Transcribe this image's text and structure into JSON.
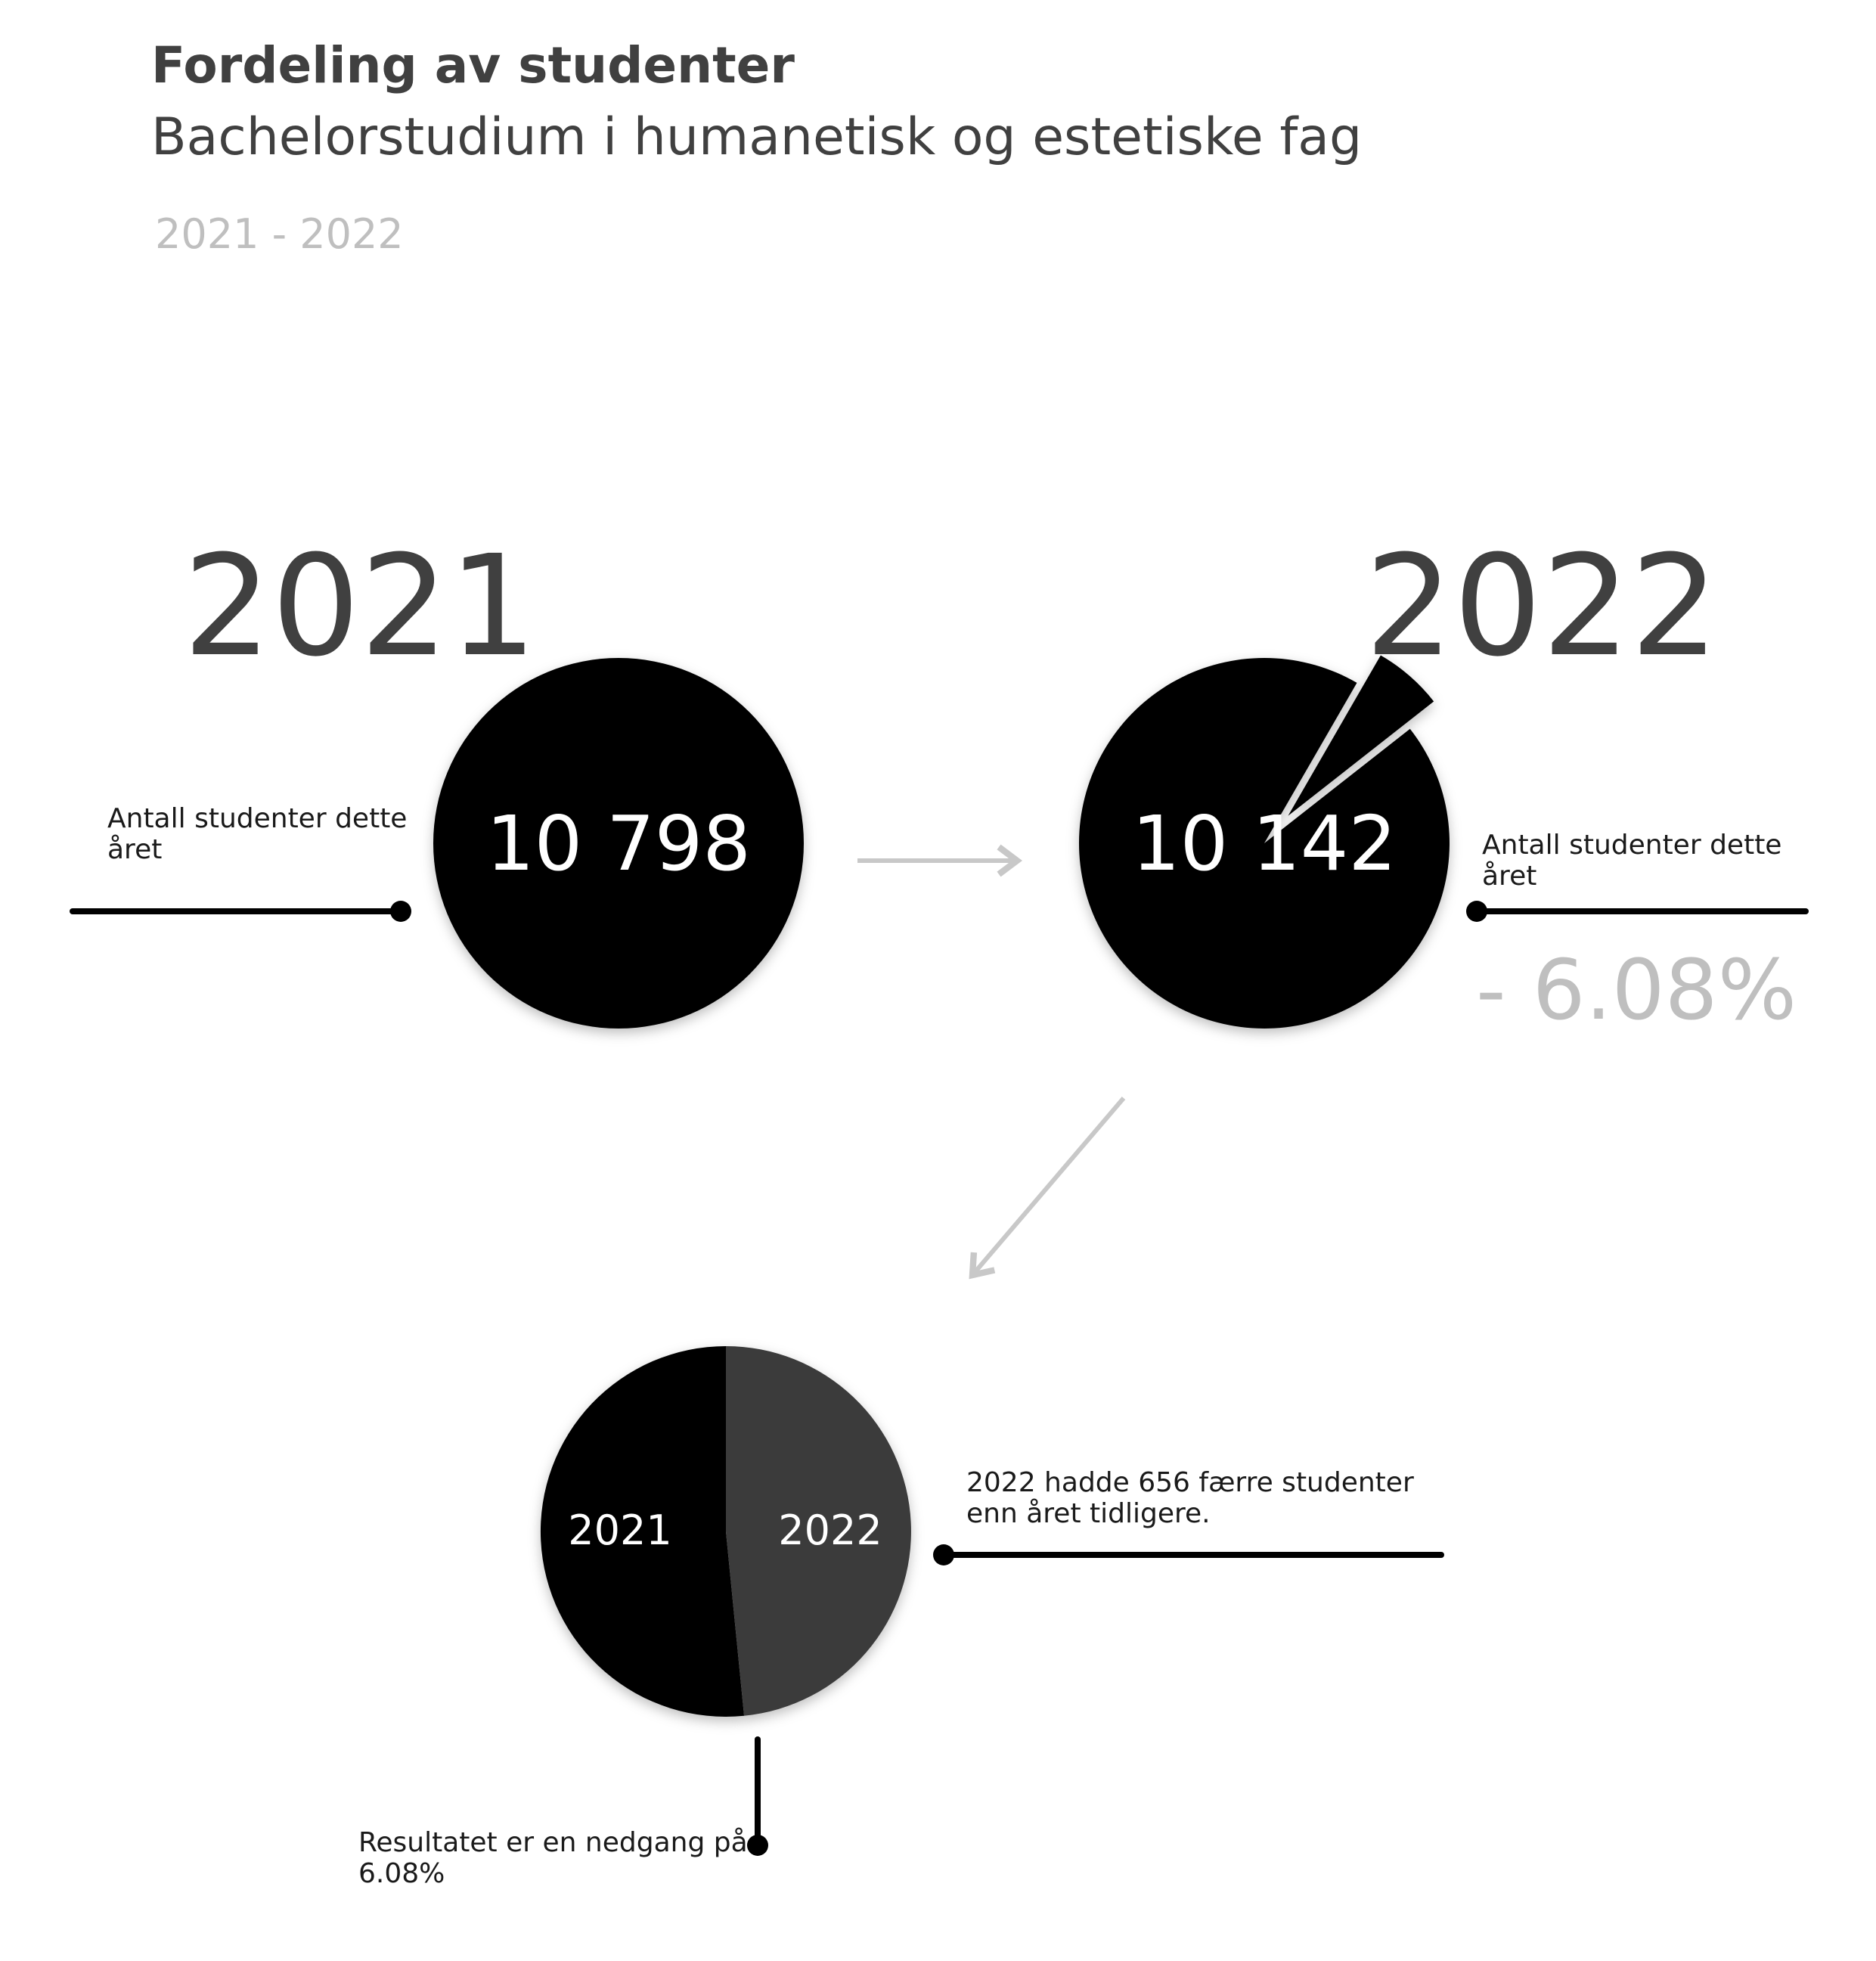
{
  "header": {
    "title": "Fordeling av studenter",
    "subtitle": "Bachelorstudium i humanetisk og estetiske fag",
    "period": "2021 - 2022"
  },
  "panels": {
    "year_2021": {
      "year": "2021",
      "value_label": "10 798",
      "caption": "Antall studenter dette året"
    },
    "year_2022": {
      "year": "2022",
      "value_label": "10 142",
      "caption": "Antall studenter dette året",
      "change": "- 6.08%"
    },
    "comparison": {
      "caption_diff": "2022 hadde 656 færre studenter enn året tidligere.",
      "caption_result": "Resultatet er en nedgang på 6.08%"
    }
  },
  "colors": {
    "circle": "#000000",
    "pie_2022": "#3a3a3a",
    "arrow": "#c8c8c8",
    "leader": "#000000"
  },
  "chart_data": [
    {
      "type": "pie",
      "title": "2021",
      "categories": [
        "Antall studenter"
      ],
      "values": [
        10798
      ]
    },
    {
      "type": "pie",
      "title": "2022",
      "categories": [
        "Antall studenter",
        "Nedgang"
      ],
      "values": [
        10142,
        656
      ],
      "annotation": "- 6.08%"
    },
    {
      "type": "pie",
      "categories": [
        "2021",
        "2022"
      ],
      "values": [
        10798,
        10142
      ],
      "annotation": "2022 hadde 656 færre studenter enn året tidligere."
    }
  ]
}
